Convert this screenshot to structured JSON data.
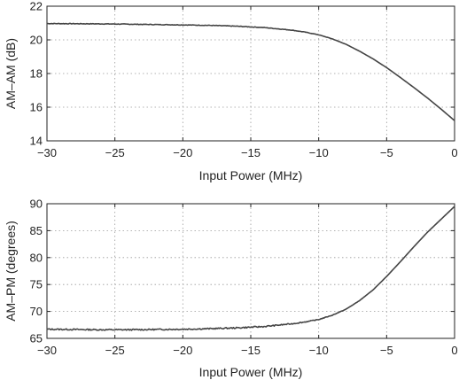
{
  "chart_data": [
    {
      "type": "line",
      "xlabel": "Input Power (MHz)",
      "ylabel": "AM–AM (dB)",
      "xlim": [
        -30,
        0
      ],
      "ylim": [
        14,
        22
      ],
      "xticks": [
        -30,
        -25,
        -20,
        -15,
        -10,
        -5,
        0
      ],
      "yticks": [
        14,
        16,
        18,
        20,
        22
      ],
      "grid": true,
      "series": [
        {
          "x": [
            -30,
            -28,
            -26,
            -24,
            -22,
            -20,
            -18,
            -16,
            -14,
            -12,
            -11,
            -10,
            -9,
            -8,
            -7,
            -6,
            -5,
            -4,
            -3,
            -2,
            -1,
            0
          ],
          "y": [
            20.97,
            20.96,
            20.95,
            20.93,
            20.91,
            20.89,
            20.86,
            20.81,
            20.73,
            20.58,
            20.46,
            20.3,
            20.06,
            19.74,
            19.33,
            18.87,
            18.35,
            17.77,
            17.17,
            16.55,
            15.89,
            15.2
          ],
          "color": "#444444"
        }
      ]
    },
    {
      "type": "line",
      "xlabel": "Input Power (MHz)",
      "ylabel": "AM–PM (degrees)",
      "xlim": [
        -30,
        0
      ],
      "ylim": [
        65,
        90
      ],
      "xticks": [
        -30,
        -25,
        -20,
        -15,
        -10,
        -5,
        0
      ],
      "yticks": [
        65,
        70,
        75,
        80,
        85,
        90
      ],
      "grid": true,
      "series": [
        {
          "x": [
            -30,
            -28,
            -26,
            -24,
            -22,
            -20,
            -18,
            -16,
            -14,
            -12,
            -11,
            -10,
            -9,
            -8,
            -7,
            -6,
            -5,
            -4,
            -3,
            -2,
            -1,
            0
          ],
          "y": [
            66.7,
            66.65,
            66.6,
            66.6,
            66.65,
            66.7,
            66.8,
            66.95,
            67.2,
            67.7,
            68.05,
            68.5,
            69.3,
            70.4,
            72.0,
            74.0,
            76.5,
            79.2,
            82.0,
            84.7,
            87.1,
            89.5
          ],
          "color": "#444444"
        }
      ]
    }
  ]
}
